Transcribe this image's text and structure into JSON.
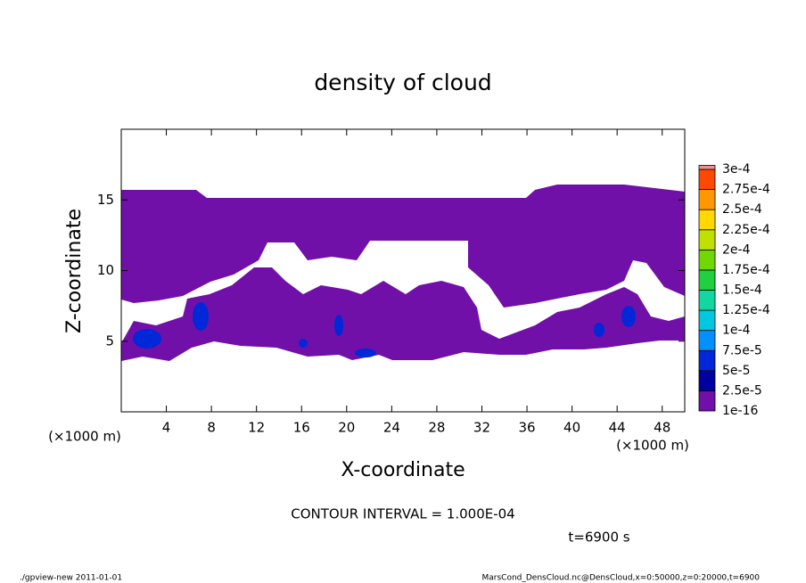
{
  "chart_data": {
    "type": "contour",
    "title": "density of cloud",
    "x_label": "X-coordinate",
    "y_label": "Z-coordinate",
    "x_unit": "(×1000 m)",
    "y_unit": "(×1000 m)",
    "xlim": [
      0,
      50
    ],
    "xticks": [
      4,
      8,
      12,
      16,
      20,
      24,
      28,
      32,
      36,
      40,
      44,
      48
    ],
    "ylim": [
      0,
      20
    ],
    "yticks": [
      5,
      10,
      15
    ],
    "colorbar": {
      "levels": [
        {
          "value": 1e-16,
          "label": "1e-16"
        },
        {
          "value": 2.5e-05,
          "label": "2.5e-5"
        },
        {
          "value": 5e-05,
          "label": "5e-5"
        },
        {
          "value": 7.5e-05,
          "label": "7.5e-5"
        },
        {
          "value": 0.0001,
          "label": "1e-4"
        },
        {
          "value": 0.000125,
          "label": "1.25e-4"
        },
        {
          "value": 0.00015,
          "label": "1.5e-4"
        },
        {
          "value": 0.000175,
          "label": "1.75e-4"
        },
        {
          "value": 0.0002,
          "label": "2e-4"
        },
        {
          "value": 0.000225,
          "label": "2.25e-4"
        },
        {
          "value": 0.00025,
          "label": "2.5e-4"
        },
        {
          "value": 0.000275,
          "label": "2.75e-4"
        },
        {
          "value": 0.0003,
          "label": "3e-4"
        }
      ],
      "colors": [
        "#7010a8",
        "#0000a0",
        "#0028d8",
        "#0090ff",
        "#00c8e0",
        "#10d8a0",
        "#20d040",
        "#70d800",
        "#c0e000",
        "#ffd800",
        "#ff9800",
        "#ff4800",
        "#ff2020",
        "#f09090"
      ]
    },
    "contour_interval": "CONTOUR INTERVAL = 1.000E-04",
    "time_label": "t=6900 s",
    "footer_left": "./gpview-new   2011-01-01",
    "footer_right": "MarsCond_DensCloud.nc@DensCloud,x=0:50000,z=0:20000,t=6900"
  }
}
